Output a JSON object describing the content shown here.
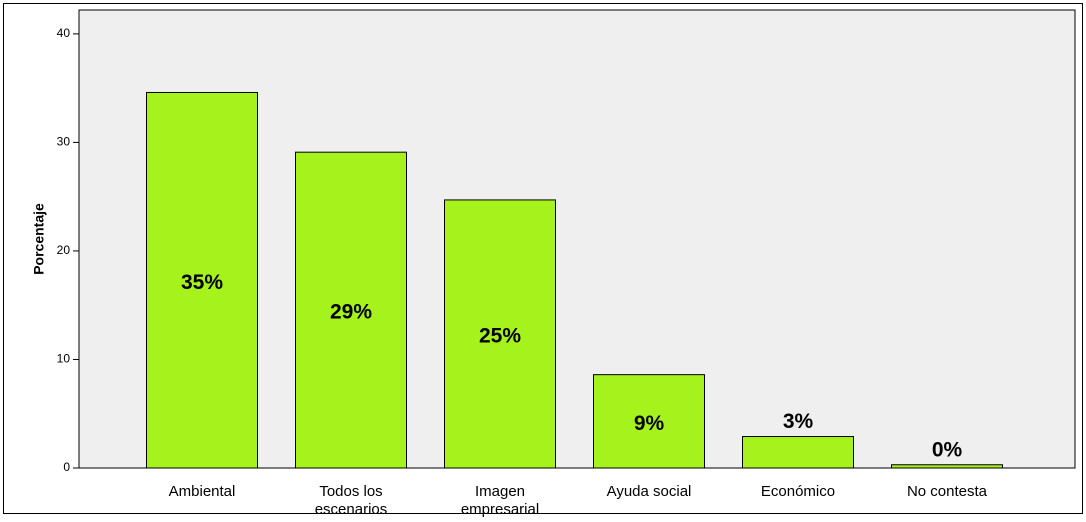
{
  "chart_data": {
    "type": "bar",
    "title": "",
    "xlabel": "",
    "ylabel": "Porcentaje",
    "ylim": [
      0,
      40
    ],
    "yticks": [
      0,
      10,
      20,
      30,
      40
    ],
    "grid": false,
    "categories": [
      [
        "Ambiental"
      ],
      [
        "Todos los",
        "escenarios"
      ],
      [
        "Imagen",
        "empresarial"
      ],
      [
        "Ayuda social"
      ],
      [
        "Económico"
      ],
      [
        "No contesta"
      ]
    ],
    "values": [
      34.6,
      29.1,
      24.7,
      8.6,
      2.9,
      0.3
    ],
    "data_labels": [
      "35%",
      "29%",
      "25%",
      "9%",
      "3%",
      "0%"
    ],
    "bar_color": "#a6f21c",
    "bar_stroke": "#000000",
    "plot_background": "#efefef"
  }
}
